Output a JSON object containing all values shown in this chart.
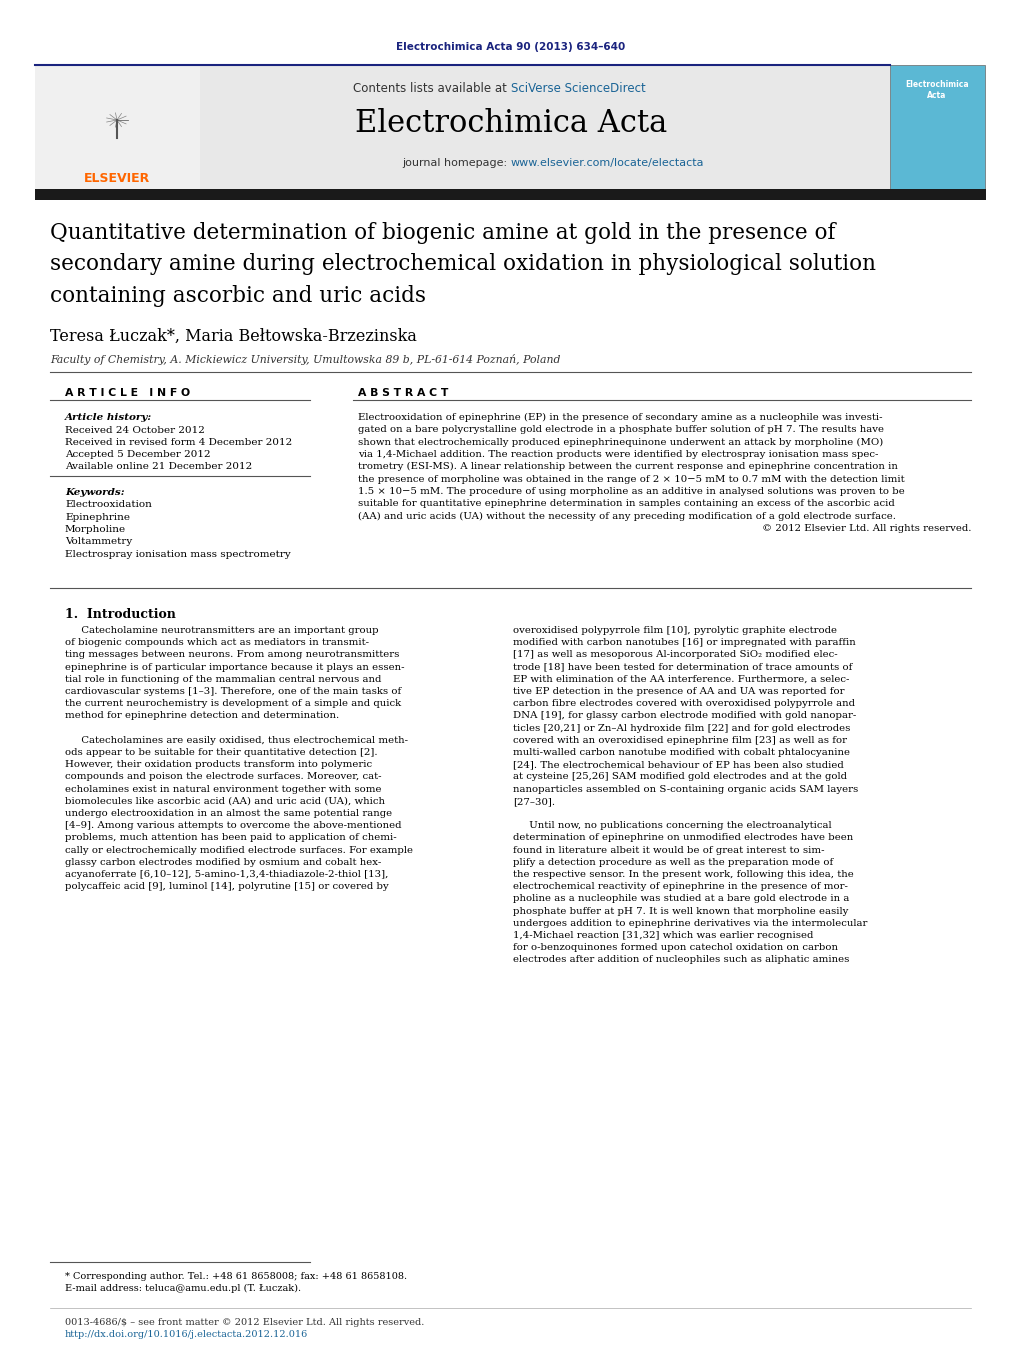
{
  "page_bg": "#ffffff",
  "top_citation": "Electrochimica Acta 90 (2013) 634–640",
  "top_citation_color": "#1a237e",
  "journal_banner_bg": "#e8e8e8",
  "contents_text": "Contents lists available at ",
  "sciverse_text": "SciVerse ScienceDirect",
  "sciverse_color": "#1a6496",
  "journal_name": "Electrochimica Acta",
  "journal_homepage_text": "journal homepage: ",
  "journal_url": "www.elsevier.com/locate/electacta",
  "journal_url_color": "#1a6496",
  "article_title": "Quantitative determination of biogenic amine at gold in the presence of\nsecondary amine during electrochemical oxidation in physiological solution\ncontaining ascorbic and uric acids",
  "authors": "Teresa Łuczak*, Maria Bełtowska-Brzezinska",
  "affiliation": "Faculty of Chemistry, A. Mickiewicz University, Umultowska 89 b, PL-61-614 Poznań, Poland",
  "article_info_title": "A R T I C L E   I N F O",
  "abstract_title": "A B S T R A C T",
  "article_history_label": "Article history:",
  "received": "Received 24 October 2012",
  "revised": "Received in revised form 4 December 2012",
  "accepted": "Accepted 5 December 2012",
  "available": "Available online 21 December 2012",
  "keywords_label": "Keywords:",
  "keywords": [
    "Electrooxidation",
    "Epinephrine",
    "Morpholine",
    "Voltammetry",
    "Electrospray ionisation mass spectrometry"
  ],
  "copyright": "© 2012 Elsevier Ltd. All rights reserved.",
  "section1_title": "1.  Introduction",
  "footer_text1": "* Corresponding author. Tel.: +48 61 8658008; fax: +48 61 8658108.",
  "footer_text2": "E-mail address: teluca@amu.edu.pl (T. Łuczak).",
  "footer_line1": "0013-4686/$ – see front matter © 2012 Elsevier Ltd. All rights reserved.",
  "footer_line2": "http://dx.doi.org/10.1016/j.electacta.2012.12.016",
  "dark_bar_color": "#1a1a1a",
  "separator_color": "#1a237e",
  "abstract_lines": [
    "Electrooxidation of epinephrine (EP) in the presence of secondary amine as a nucleophile was investi-",
    "gated on a bare polycrystalline gold electrode in a phosphate buffer solution of pH 7. The results have",
    "shown that electrochemically produced epinephrinequinone underwent an attack by morpholine (MO)",
    "via 1,4-Michael addition. The reaction products were identified by electrospray ionisation mass spec-",
    "trometry (ESI-MS). A linear relationship between the current response and epinephrine concentration in",
    "the presence of morpholine was obtained in the range of 2 × 10−5 mM to 0.7 mM with the detection limit",
    "1.5 × 10−5 mM. The procedure of using morpholine as an additive in analysed solutions was proven to be",
    "suitable for quantitative epinephrine determination in samples containing an excess of the ascorbic acid",
    "(AA) and uric acids (UA) without the necessity of any preceding modification of a gold electrode surface."
  ],
  "intro_col1_lines": [
    "     Catecholamine neurotransmitters are an important group",
    "of biogenic compounds which act as mediators in transmit-",
    "ting messages between neurons. From among neurotransmitters",
    "epinephrine is of particular importance because it plays an essen-",
    "tial role in functioning of the mammalian central nervous and",
    "cardiovascular systems [1–3]. Therefore, one of the main tasks of",
    "the current neurochemistry is development of a simple and quick",
    "method for epinephrine detection and determination.",
    "",
    "     Catecholamines are easily oxidised, thus electrochemical meth-",
    "ods appear to be suitable for their quantitative detection [2].",
    "However, their oxidation products transform into polymeric",
    "compounds and poison the electrode surfaces. Moreover, cat-",
    "echolamines exist in natural environment together with some",
    "biomolecules like ascorbic acid (AA) and uric acid (UA), which",
    "undergo electrooxidation in an almost the same potential range",
    "[4–9]. Among various attempts to overcome the above-mentioned",
    "problems, much attention has been paid to application of chemi-",
    "cally or electrochemically modified electrode surfaces. For example",
    "glassy carbon electrodes modified by osmium and cobalt hex-",
    "acyanoferrate [6,10–12], 5-amino-1,3,4-thiadiazole-2-thiol [13],",
    "polycaffeic acid [9], luminol [14], polyrutine [15] or covered by"
  ],
  "intro_col2_lines": [
    "overoxidised polypyrrole film [10], pyrolytic graphite electrode",
    "modified with carbon nanotubes [16] or impregnated with paraffin",
    "[17] as well as mesoporous Al-incorporated SiO₂ modified elec-",
    "trode [18] have been tested for determination of trace amounts of",
    "EP with elimination of the AA interference. Furthermore, a selec-",
    "tive EP detection in the presence of AA and UA was reported for",
    "carbon fibre electrodes covered with overoxidised polypyrrole and",
    "DNA [19], for glassy carbon electrode modified with gold nanopar-",
    "ticles [20,21] or Zn–Al hydroxide film [22] and for gold electrodes",
    "covered with an overoxidised epinephrine film [23] as well as for",
    "multi-walled carbon nanotube modified with cobalt phtalocyanine",
    "[24]. The electrochemical behaviour of EP has been also studied",
    "at cysteine [25,26] SAM modified gold electrodes and at the gold",
    "nanoparticles assembled on S-containing organic acids SAM layers",
    "[27–30].",
    "",
    "     Until now, no publications concerning the electroanalytical",
    "determination of epinephrine on unmodified electrodes have been",
    "found in literature albeit it would be of great interest to sim-",
    "plify a detection procedure as well as the preparation mode of",
    "the respective sensor. In the present work, following this idea, the",
    "electrochemical reactivity of epinephrine in the presence of mor-",
    "pholine as a nucleophile was studied at a bare gold electrode in a",
    "phosphate buffer at pH 7. It is well known that morpholine easily",
    "undergoes addition to epinephrine derivatives via the intermolecular",
    "1,4-Michael reaction [31,32] which was earlier recognised",
    "for o-benzoquinones formed upon catechol oxidation on carbon",
    "electrodes after addition of nucleophiles such as aliphatic amines"
  ]
}
